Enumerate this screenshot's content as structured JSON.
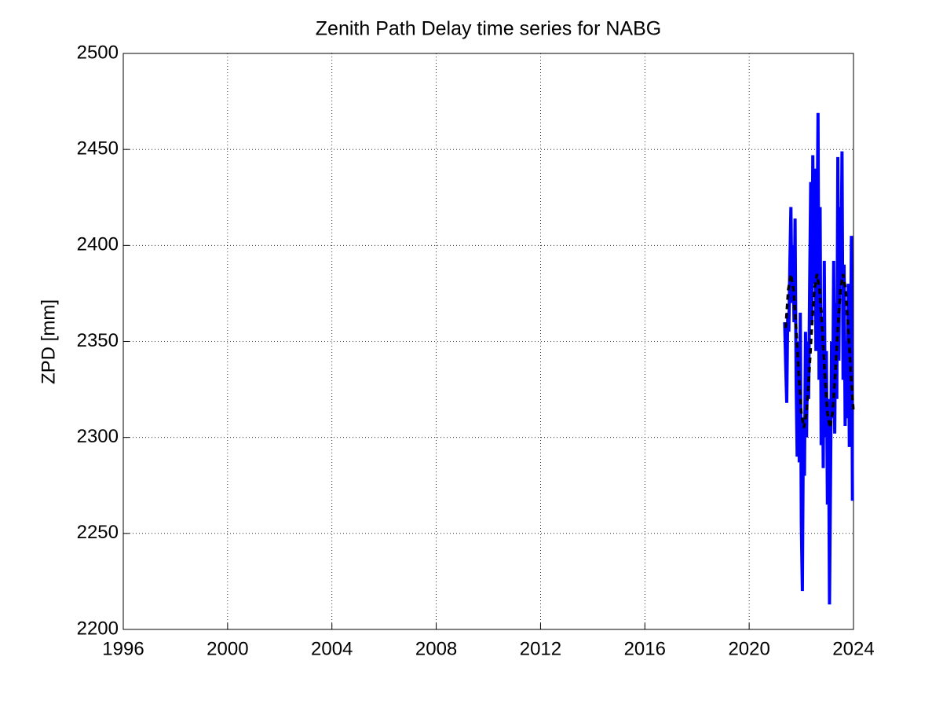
{
  "chart_data": {
    "type": "line",
    "title": "Zenith Path Delay time series for NABG",
    "ylabel": "ZPD [mm]",
    "xlim": [
      1996,
      2024
    ],
    "xticks": [
      1996,
      2000,
      2004,
      2008,
      2012,
      2016,
      2020,
      2024
    ],
    "ylim": [
      2200,
      2500
    ],
    "yticks": [
      2200,
      2250,
      2300,
      2350,
      2400,
      2450,
      2500
    ],
    "grid": true,
    "series": [
      {
        "color": "#0000ff",
        "style": "solid",
        "x": [
          2021.36,
          2021.4,
          2021.44,
          2021.48,
          2021.52,
          2021.56,
          2021.6,
          2021.64,
          2021.68,
          2021.72,
          2021.76,
          2021.8,
          2021.84,
          2021.88,
          2021.92,
          2021.96,
          2022.0,
          2022.04,
          2022.08,
          2022.12,
          2022.16,
          2022.2,
          2022.24,
          2022.28,
          2022.32,
          2022.36,
          2022.4,
          2022.44,
          2022.48,
          2022.52,
          2022.56,
          2022.6,
          2022.64,
          2022.68,
          2022.72,
          2022.76,
          2022.8,
          2022.84,
          2022.88,
          2022.92,
          2022.96,
          2023.0,
          2023.04,
          2023.08,
          2023.12,
          2023.16,
          2023.2,
          2023.24,
          2023.28,
          2023.32,
          2023.36,
          2023.4,
          2023.44,
          2023.48,
          2023.52,
          2023.56,
          2023.6,
          2023.64,
          2023.68,
          2023.72,
          2023.76,
          2023.8,
          2023.84,
          2023.88,
          2023.92,
          2023.96
        ],
        "values": [
          2360,
          2338,
          2318,
          2365,
          2355,
          2390,
          2420,
          2370,
          2400,
          2360,
          2414,
          2330,
          2290,
          2350,
          2287,
          2365,
          2255,
          2220,
          2310,
          2280,
          2355,
          2300,
          2350,
          2320,
          2380,
          2433,
          2360,
          2447,
          2380,
          2440,
          2345,
          2400,
          2469,
          2330,
          2420,
          2296,
          2360,
          2284,
          2392,
          2300,
          2345,
          2265,
          2320,
          2213,
          2278,
          2350,
          2310,
          2392,
          2302,
          2370,
          2320,
          2446,
          2340,
          2420,
          2380,
          2449,
          2330,
          2390,
          2306,
          2350,
          2310,
          2380,
          2295,
          2330,
          2405,
          2267
        ]
      },
      {
        "color": "#000000",
        "style": "dashed",
        "x": [
          2021.4,
          2021.5,
          2021.6,
          2021.7,
          2021.8,
          2021.9,
          2022.0,
          2022.1,
          2022.2,
          2022.3,
          2022.4,
          2022.5,
          2022.6,
          2022.7,
          2022.8,
          2022.9,
          2023.0,
          2023.1,
          2023.2,
          2023.3,
          2023.4,
          2023.5,
          2023.6,
          2023.7,
          2023.8,
          2023.9,
          2024.0
        ],
        "values": [
          2357,
          2377,
          2385,
          2377,
          2357,
          2333,
          2313,
          2305,
          2313,
          2333,
          2357,
          2377,
          2385,
          2377,
          2357,
          2333,
          2313,
          2305,
          2313,
          2333,
          2357,
          2377,
          2385,
          2377,
          2357,
          2333,
          2313
        ]
      }
    ]
  }
}
